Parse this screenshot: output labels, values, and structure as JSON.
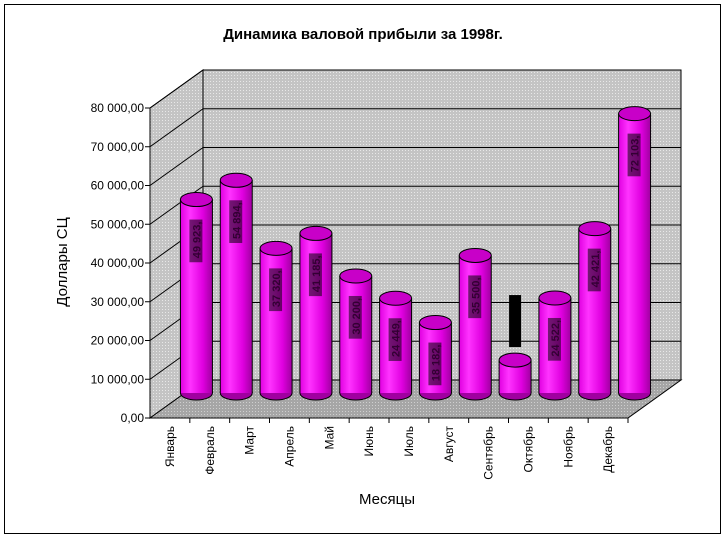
{
  "chart_data": {
    "type": "bar",
    "style": "3d-cylinder",
    "title": "Динамика валовой прибыли за 1998г.",
    "xlabel": "Месяцы",
    "ylabel": "Доллары  СЦ",
    "categories": [
      "Январь",
      "Февраль",
      "Март",
      "Апрель",
      "Май",
      "Июнь",
      "Июль",
      "Август",
      "Сентябрь",
      "Октябрь",
      "Ноябрь",
      "Декабрь"
    ],
    "values": [
      49923,
      54894,
      37320,
      41185,
      30200,
      24449,
      18182,
      35500,
      8500,
      24522,
      42421,
      72103
    ],
    "data_labels": [
      "49 923,",
      "54 894,",
      "37 320,",
      "41 185,",
      "30 200,",
      "24 449,",
      "18 182,",
      "35 500,",
      "",
      "24 522,",
      "42 421,",
      "72 103,"
    ],
    "yticks": [
      "0,00",
      "10 000,00",
      "20 000,00",
      "30 000,00",
      "40 000,00",
      "50 000,00",
      "60 000,00",
      "70 000,00",
      "80 000,00"
    ],
    "ylim": [
      0,
      80000
    ],
    "grid": true,
    "legend": "none",
    "colors": {
      "bar": "#ff00ff",
      "bar_dark": "#b000b0",
      "wall": "#c8c8c8",
      "floor": "#9a9a9a"
    }
  }
}
